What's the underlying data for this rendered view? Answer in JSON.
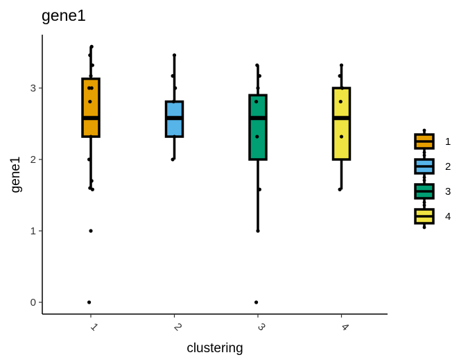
{
  "chart_data": {
    "type": "box",
    "title": "gene1",
    "xlabel": "clustering",
    "ylabel": "gene1",
    "categories": [
      "1",
      "2",
      "3",
      "4"
    ],
    "ylim": [
      -0.2,
      3.8
    ],
    "yticks": [
      0,
      1,
      2,
      3
    ],
    "ytick_labels": [
      "0",
      "1",
      "2",
      "3"
    ],
    "xtick_rotation_deg": 45,
    "grid": false,
    "legend_position": "right",
    "legend": [
      {
        "label": "1",
        "color": "#E69F00"
      },
      {
        "label": "2",
        "color": "#56B4E9"
      },
      {
        "label": "3",
        "color": "#009E73"
      },
      {
        "label": "4",
        "color": "#F0E442"
      }
    ],
    "boxes": [
      {
        "category": "1",
        "color": "#E69F00",
        "q1": 2.32,
        "median": 2.58,
        "q3": 3.13,
        "whisker_low": 1.58,
        "whisker_high": 3.58
      },
      {
        "category": "2",
        "color": "#56B4E9",
        "q1": 2.32,
        "median": 2.58,
        "q3": 2.81,
        "whisker_low": 2.0,
        "whisker_high": 3.46
      },
      {
        "category": "3",
        "color": "#009E73",
        "q1": 2.0,
        "median": 2.58,
        "q3": 2.9,
        "whisker_low": 1.0,
        "whisker_high": 3.32
      },
      {
        "category": "4",
        "color": "#F0E442",
        "q1": 2.0,
        "median": 2.58,
        "q3": 3.0,
        "whisker_low": 1.58,
        "whisker_high": 3.32
      }
    ],
    "points": [
      {
        "category": "1",
        "values": [
          0,
          1.0,
          1.58,
          1.6,
          1.7,
          2.0,
          2.32,
          2.58,
          2.81,
          3.0,
          3.0,
          3.17,
          3.32,
          3.46,
          3.58
        ]
      },
      {
        "category": "2",
        "values": [
          2.0,
          2.32,
          2.58,
          2.81,
          3.0,
          3.17,
          3.46
        ]
      },
      {
        "category": "3",
        "values": [
          0,
          1.0,
          1.58,
          2.32,
          2.58,
          2.81,
          3.0,
          3.17,
          3.32
        ]
      },
      {
        "category": "4",
        "values": [
          1.58,
          2.32,
          2.58,
          2.81,
          3.0,
          3.17,
          3.32
        ]
      }
    ]
  }
}
